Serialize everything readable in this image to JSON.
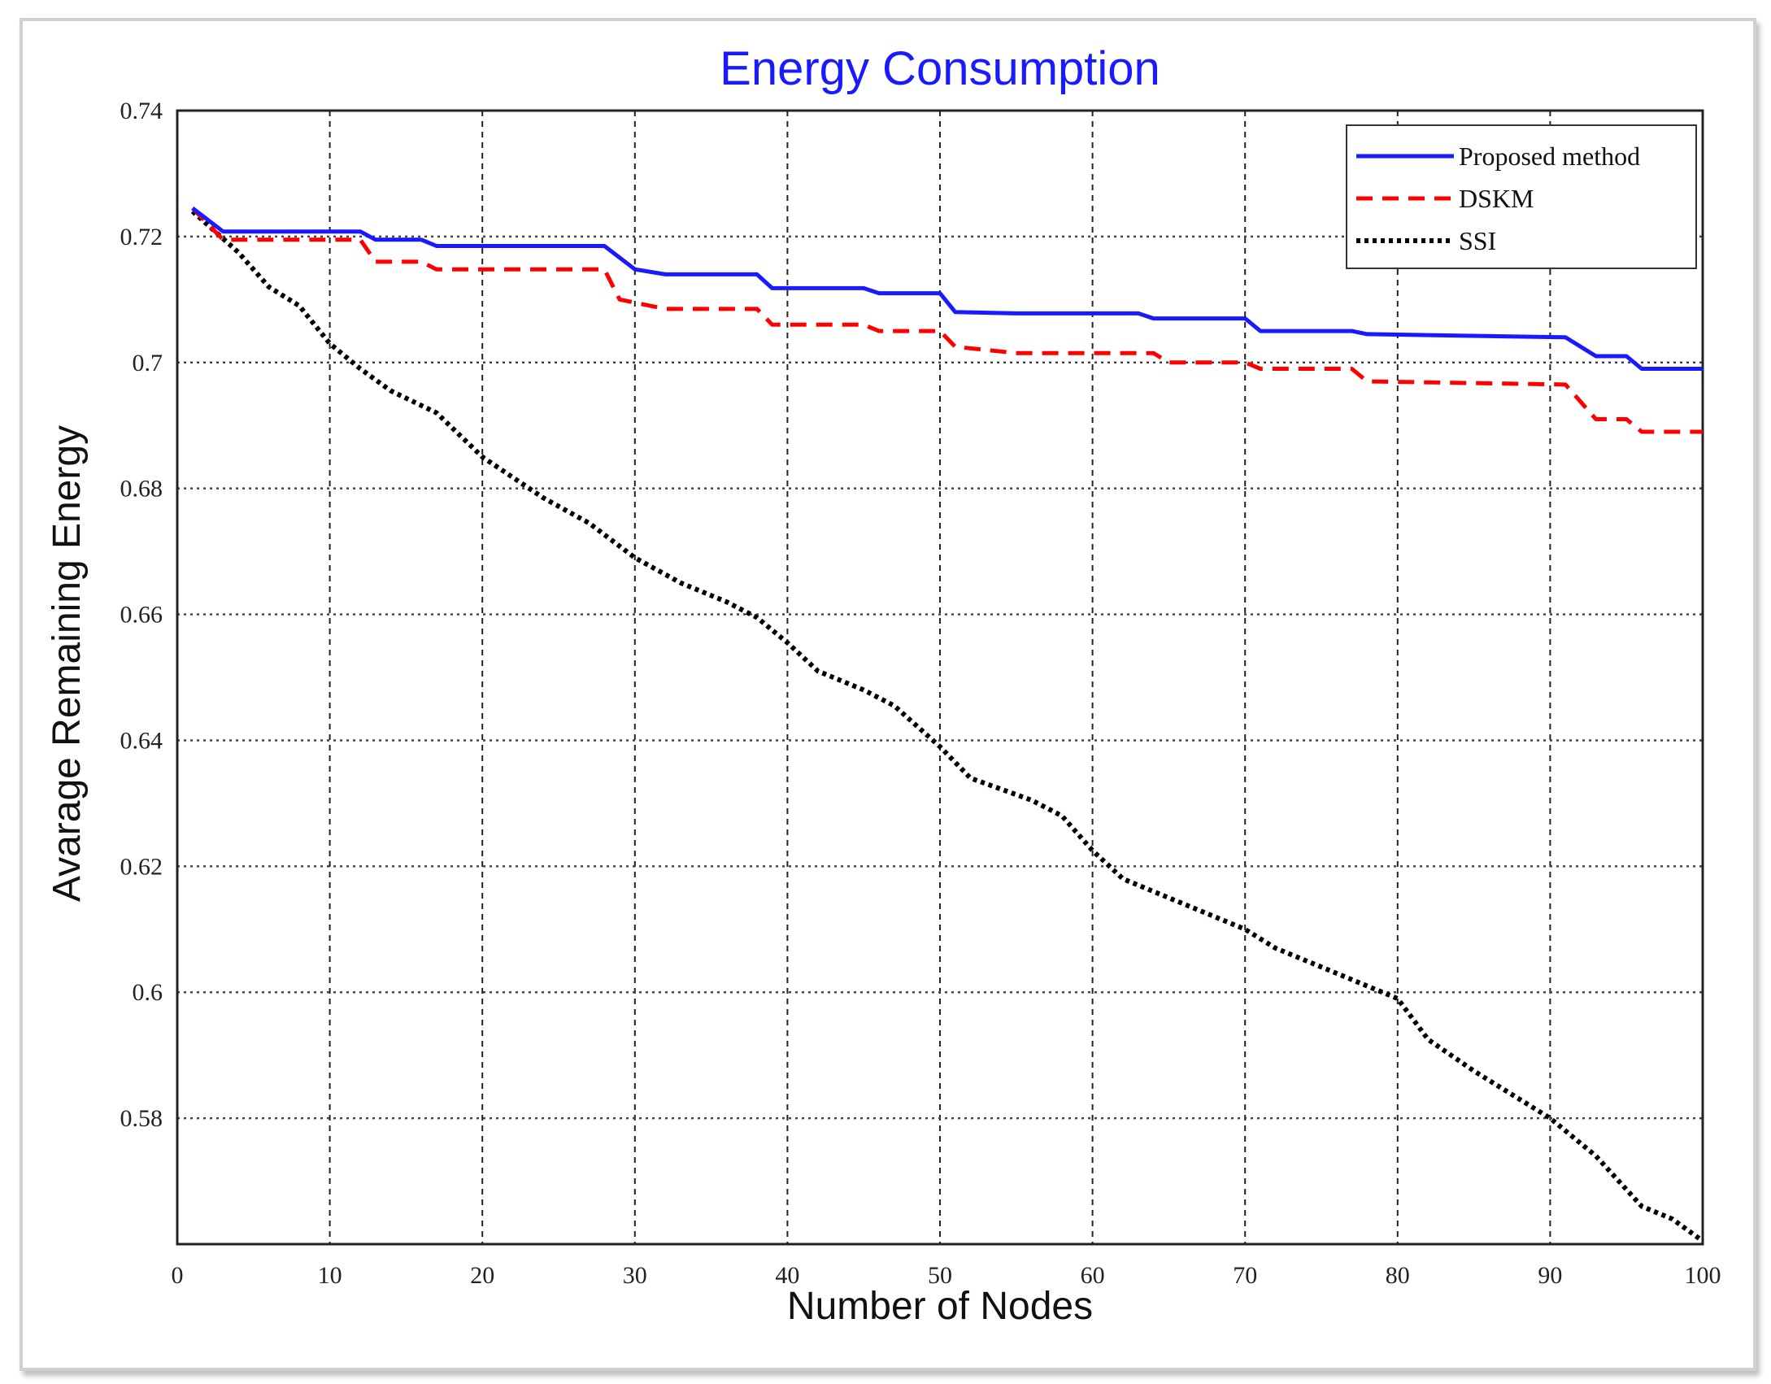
{
  "chart_data": {
    "type": "line",
    "title": "Energy Consumption",
    "xlabel": "Number of Nodes",
    "ylabel": "Avarage Remaining Energy",
    "xlim": [
      0,
      100
    ],
    "ylim": [
      0.56,
      0.74
    ],
    "x_ticks": [
      "0",
      "10",
      "20",
      "30",
      "40",
      "50",
      "60",
      "70",
      "80",
      "90",
      "100"
    ],
    "y_ticks": [
      "0.58",
      "0.6",
      "0.62",
      "0.64",
      "0.66",
      "0.68",
      "0.7",
      "0.72",
      "0.74"
    ],
    "grid": true,
    "legend_position": "top-right",
    "series": [
      {
        "name": "Proposed method",
        "color": "#1a1aff",
        "style": "solid",
        "x": [
          1,
          3,
          12,
          13,
          16,
          17,
          28,
          30,
          32,
          38,
          39,
          45,
          46,
          50,
          51,
          55,
          63,
          64,
          70,
          71,
          77,
          78,
          91,
          93,
          95,
          96,
          100
        ],
        "y": [
          0.7245,
          0.7208,
          0.7208,
          0.7195,
          0.7195,
          0.7185,
          0.7185,
          0.7148,
          0.714,
          0.714,
          0.7118,
          0.7118,
          0.711,
          0.711,
          0.708,
          0.7078,
          0.7078,
          0.707,
          0.707,
          0.705,
          0.705,
          0.7045,
          0.704,
          0.701,
          0.701,
          0.699,
          0.699
        ]
      },
      {
        "name": "DSKM",
        "color": "#ff0000",
        "style": "dashed",
        "x": [
          1,
          3,
          12,
          13,
          16,
          17,
          28,
          29,
          32,
          38,
          39,
          45,
          46,
          50,
          51,
          55,
          64,
          65,
          70,
          71,
          77,
          78,
          91,
          93,
          95,
          96,
          100
        ],
        "y": [
          0.7245,
          0.7195,
          0.7195,
          0.716,
          0.716,
          0.7148,
          0.7148,
          0.71,
          0.7085,
          0.7085,
          0.706,
          0.706,
          0.705,
          0.705,
          0.7025,
          0.7015,
          0.7015,
          0.7,
          0.7,
          0.699,
          0.699,
          0.697,
          0.6965,
          0.691,
          0.691,
          0.689,
          0.689
        ]
      },
      {
        "name": "SSI",
        "color": "#000000",
        "style": "dotted",
        "x": [
          1,
          4,
          6,
          8,
          10,
          12,
          14,
          17,
          20,
          24,
          27,
          30,
          33,
          36,
          38,
          40,
          42,
          45,
          47,
          50,
          52,
          56,
          58,
          60,
          62,
          65,
          68,
          70,
          72,
          75,
          80,
          82,
          85,
          88,
          90,
          93,
          96,
          98,
          100
        ],
        "y": [
          0.724,
          0.7175,
          0.712,
          0.709,
          0.703,
          0.699,
          0.6955,
          0.692,
          0.685,
          0.6785,
          0.6745,
          0.669,
          0.665,
          0.662,
          0.6595,
          0.6555,
          0.651,
          0.648,
          0.6455,
          0.639,
          0.634,
          0.6305,
          0.628,
          0.6225,
          0.618,
          0.615,
          0.612,
          0.61,
          0.607,
          0.604,
          0.599,
          0.5925,
          0.5875,
          0.583,
          0.58,
          0.574,
          0.566,
          0.564,
          0.5605
        ]
      }
    ]
  }
}
